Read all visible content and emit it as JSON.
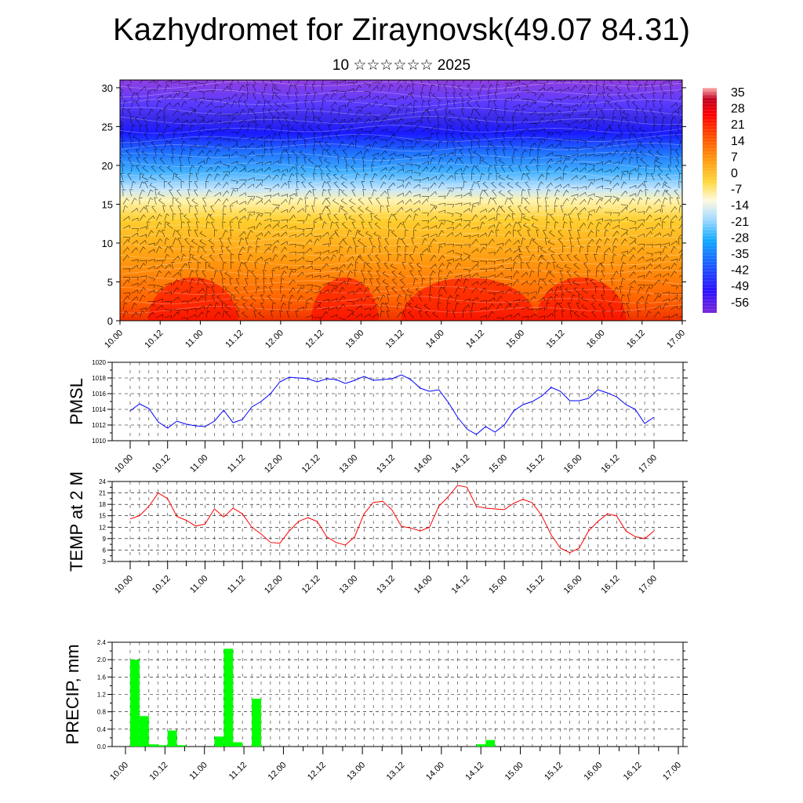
{
  "title": "Kazhydromet for Ziraynovsk(49.07 84.31)",
  "subtitle": "10 ☆☆☆☆☆☆ 2025",
  "x_tick_labels": [
    "10.00",
    "10.12",
    "11.00",
    "11.12",
    "12.00",
    "12.12",
    "13.00",
    "13.12",
    "14.00",
    "14.12",
    "15.00",
    "15.12",
    "16.00",
    "16.12",
    "17.00"
  ],
  "chart_data": [
    {
      "type": "heatmap",
      "name": "vertical cross-section (temperature shading with wind barbs)",
      "x_ticks": [
        "10.00",
        "10.12",
        "11.00",
        "11.12",
        "12.00",
        "12.12",
        "13.00",
        "13.12",
        "14.00",
        "14.12",
        "15.00",
        "15.12",
        "16.00",
        "16.12",
        "17.00"
      ],
      "y_ticks": [
        0,
        5,
        10,
        15,
        20,
        25,
        30
      ],
      "ylim": [
        0,
        31
      ],
      "colorbar_labels": [
        35,
        28,
        21,
        14,
        7,
        0,
        -7,
        -14,
        -21,
        -28,
        -35,
        -42,
        -49,
        -56
      ],
      "colors": [
        "#ff0000",
        "#ff8000",
        "#ffd040",
        "#fff8c0",
        "#80c8ff",
        "#2080ff",
        "#2020ff",
        "#8030e0"
      ]
    },
    {
      "type": "line",
      "ylabel": "PMSL",
      "ylim": [
        1010,
        1020
      ],
      "y_ticks": [
        1010,
        1012,
        1014,
        1016,
        1018,
        1020
      ],
      "color": "#0000ff",
      "values": [
        1013.8,
        1014.7,
        1014.1,
        1012.4,
        1011.6,
        1012.5,
        1012.1,
        1011.9,
        1011.8,
        1012.5,
        1013.9,
        1012.3,
        1012.7,
        1014.3,
        1015.0,
        1016.0,
        1017.5,
        1018.1,
        1018.0,
        1017.9,
        1017.5,
        1017.9,
        1017.8,
        1017.3,
        1017.7,
        1018.2,
        1017.7,
        1017.8,
        1017.9,
        1018.4,
        1017.8,
        1016.7,
        1016.3,
        1016.5,
        1014.9,
        1013.0,
        1011.5,
        1010.8,
        1011.8,
        1011.1,
        1012.0,
        1013.8,
        1014.6,
        1015.0,
        1015.7,
        1016.8,
        1016.3,
        1015.1,
        1015.1,
        1015.4,
        1016.5,
        1016.1,
        1015.6,
        1014.6,
        1014.0,
        1012.2,
        1013.0
      ]
    },
    {
      "type": "line",
      "ylabel": "TEMP at 2 M",
      "ylim": [
        3,
        24
      ],
      "y_ticks": [
        3,
        6,
        9,
        12,
        15,
        18,
        21,
        24
      ],
      "color": "#ff0000",
      "values": [
        14.2,
        15.0,
        17.5,
        21.0,
        19.5,
        14.8,
        13.8,
        12.3,
        12.8,
        16.8,
        14.7,
        17.0,
        15.5,
        12.0,
        10.2,
        8.0,
        7.8,
        11.0,
        13.5,
        14.5,
        13.5,
        9.5,
        8.0,
        7.3,
        9.5,
        15.5,
        18.5,
        18.8,
        16.5,
        12.2,
        11.8,
        11.0,
        12.0,
        17.5,
        20.0,
        23.0,
        22.5,
        17.5,
        17.0,
        16.8,
        16.6,
        18.3,
        19.3,
        18.4,
        15.0,
        10.0,
        6.5,
        5.3,
        6.5,
        11.0,
        13.5,
        15.5,
        15.0,
        11.0,
        9.5,
        9.0,
        11.0
      ]
    },
    {
      "type": "bar",
      "ylabel": "PRECIP, mm",
      "ylim": [
        0,
        2.4
      ],
      "y_ticks": [
        "0.0",
        "0.4",
        "0.8",
        "1.2",
        "1.6",
        "2.0",
        "2.4"
      ],
      "color": "#00ff00",
      "bars": [
        {
          "x": 0,
          "value": 2.0
        },
        {
          "x": 1,
          "value": 0.7
        },
        {
          "x": 2,
          "value": 0.05
        },
        {
          "x": 3,
          "value": 0.03
        },
        {
          "x": 4,
          "value": 0.37
        },
        {
          "x": 5,
          "value": 0.03
        },
        {
          "x": 9,
          "value": 0.23
        },
        {
          "x": 10,
          "value": 2.25
        },
        {
          "x": 11,
          "value": 0.1
        },
        {
          "x": 13,
          "value": 1.1
        },
        {
          "x": 37,
          "value": 0.05
        },
        {
          "x": 38,
          "value": 0.15
        }
      ]
    }
  ]
}
